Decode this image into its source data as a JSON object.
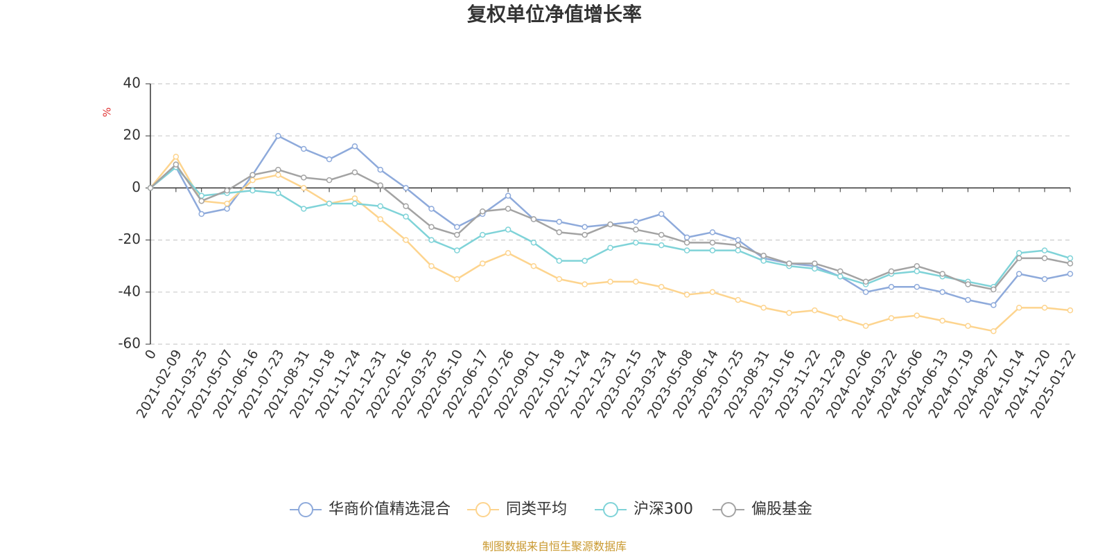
{
  "chart_data": {
    "type": "line",
    "title": "复权单位净值增长率",
    "y_unit": "%",
    "source": "制图数据来自恒生聚源数据库",
    "categories": [
      "0",
      "2021-02-09",
      "2021-03-25",
      "2021-05-07",
      "2021-06-16",
      "2021-07-23",
      "2021-08-31",
      "2021-10-18",
      "2021-11-24",
      "2021-12-31",
      "2022-02-16",
      "2022-03-25",
      "2022-05-10",
      "2022-06-17",
      "2022-07-26",
      "2022-09-01",
      "2022-10-18",
      "2022-11-24",
      "2022-12-31",
      "2023-02-15",
      "2023-03-24",
      "2023-05-08",
      "2023-06-14",
      "2023-07-25",
      "2023-08-31",
      "2023-10-16",
      "2023-11-22",
      "2023-12-29",
      "2024-02-06",
      "2024-03-22",
      "2024-05-06",
      "2024-06-13",
      "2024-07-19",
      "2024-08-27",
      "2024-10-14",
      "2024-11-20",
      "2025-01-22"
    ],
    "series": [
      {
        "name": "华商价值精选混合",
        "color": "#8eaadb",
        "values": [
          0,
          8,
          -10,
          -8,
          5,
          20,
          15,
          11,
          16,
          7,
          0,
          -8,
          -15,
          -10,
          -3,
          -12,
          -13,
          -15,
          -14,
          -13,
          -10,
          -19,
          -17,
          -20,
          -27,
          -29,
          -30,
          -34,
          -40,
          -38,
          -38,
          -40,
          -43,
          -45,
          -33,
          -35,
          -33
        ]
      },
      {
        "name": "同类平均",
        "color": "#fdd48e",
        "values": [
          0,
          12,
          -5,
          -6,
          3,
          5,
          0,
          -6,
          -4,
          -12,
          -20,
          -30,
          -35,
          -29,
          -25,
          -30,
          -35,
          -37,
          -36,
          -36,
          -38,
          -41,
          -40,
          -43,
          -46,
          -48,
          -47,
          -50,
          -53,
          -50,
          -49,
          -51,
          -53,
          -55,
          -46,
          -46,
          -47
        ]
      },
      {
        "name": "沪深300",
        "color": "#7fd3d8",
        "values": [
          0,
          8,
          -3,
          -2,
          -1,
          -2,
          -8,
          -6,
          -6,
          -7,
          -11,
          -20,
          -24,
          -18,
          -16,
          -21,
          -28,
          -28,
          -23,
          -21,
          -22,
          -24,
          -24,
          -24,
          -28,
          -30,
          -31,
          -34,
          -37,
          -33,
          -32,
          -34,
          -36,
          -38,
          -25,
          -24,
          -27
        ]
      },
      {
        "name": "偏股基金",
        "color": "#a3a3a3",
        "values": [
          0,
          9,
          -5,
          -1,
          5,
          7,
          4,
          3,
          6,
          1,
          -7,
          -15,
          -18,
          -9,
          -8,
          -12,
          -17,
          -18,
          -14,
          -16,
          -18,
          -21,
          -21,
          -22,
          -26,
          -29,
          -29,
          -32,
          -36,
          -32,
          -30,
          -33,
          -37,
          -39,
          -27,
          -27,
          -29
        ]
      }
    ],
    "ylim": [
      -60,
      40
    ],
    "yticks": [
      -60,
      -40,
      -20,
      0,
      20,
      40
    ],
    "grid": true,
    "legend": "bottom"
  }
}
